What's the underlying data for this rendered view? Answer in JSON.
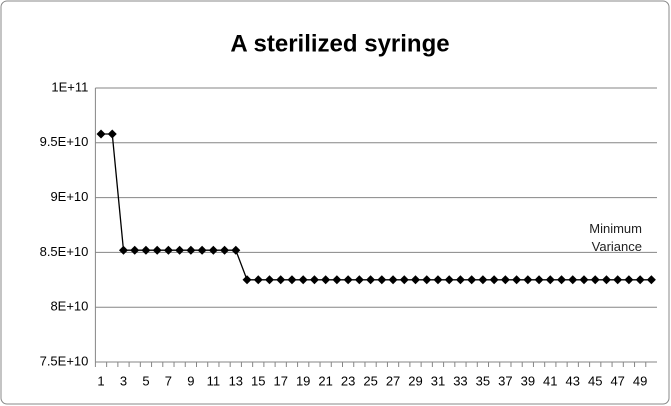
{
  "chart_data": {
    "type": "line",
    "title": "A sterilized syringe",
    "categories": [
      "1",
      null,
      "3",
      null,
      "5",
      null,
      "7",
      null,
      "9",
      null,
      "11",
      null,
      "13",
      null,
      "15",
      null,
      "17",
      null,
      "19",
      null,
      "21",
      null,
      "23",
      null,
      "25",
      null,
      "27",
      null,
      "29",
      null,
      "31",
      null,
      "33",
      null,
      "35",
      null,
      "37",
      null,
      "39",
      null,
      "41",
      null,
      "43",
      null,
      "45",
      null,
      "47",
      null,
      "49",
      null
    ],
    "series": [
      {
        "name": "Variance",
        "color": "#000000",
        "values": [
          95800000000,
          95800000000,
          85200000000,
          85200000000,
          85200000000,
          85200000000,
          85200000000,
          85200000000,
          85200000000,
          85200000000,
          85200000000,
          85200000000,
          85200000000,
          82500000000,
          82500000000,
          82500000000,
          82500000000,
          82500000000,
          82500000000,
          82500000000,
          82500000000,
          82500000000,
          82500000000,
          82500000000,
          82500000000,
          82500000000,
          82500000000,
          82500000000,
          82500000000,
          82500000000,
          82500000000,
          82500000000,
          82500000000,
          82500000000,
          82500000000,
          82500000000,
          82500000000,
          82500000000,
          82500000000,
          82500000000,
          82500000000,
          82500000000,
          82500000000,
          82500000000,
          82500000000,
          82500000000,
          82500000000,
          82500000000,
          82500000000,
          82500000000
        ]
      }
    ],
    "annotation": "Minimum Variance",
    "ylim": [
      75000000000,
      100000000000
    ],
    "yticks": [
      {
        "value": 75000000000,
        "label": "7.5E+10"
      },
      {
        "value": 80000000000,
        "label": "8E+10"
      },
      {
        "value": 85000000000,
        "label": "8.5E+10"
      },
      {
        "value": 90000000000,
        "label": "9E+10"
      },
      {
        "value": 95000000000,
        "label": "9.5E+10"
      },
      {
        "value": 100000000000,
        "label": "1E+11"
      }
    ],
    "grid": true
  }
}
